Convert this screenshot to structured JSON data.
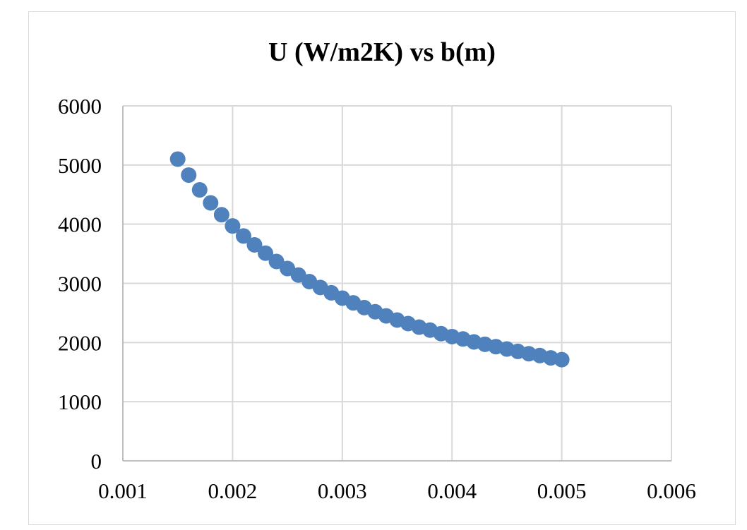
{
  "chart_data": {
    "type": "scatter",
    "title": "U (W/m2K) vs b(m)",
    "xlabel": "",
    "ylabel": "",
    "xlim": [
      0.001,
      0.006
    ],
    "ylim": [
      0,
      6000
    ],
    "x_ticks": [
      "0.001",
      "0.002",
      "0.003",
      "0.004",
      "0.005",
      "0.006"
    ],
    "y_ticks": [
      "0",
      "1000",
      "2000",
      "3000",
      "4000",
      "5000",
      "6000"
    ],
    "grid": true,
    "legend": "none",
    "marker_color": "#4f81bd",
    "series": [
      {
        "x": [
          0.0015,
          0.0016,
          0.0017,
          0.0018,
          0.0019,
          0.002,
          0.0021,
          0.0022,
          0.0023,
          0.0024,
          0.0025,
          0.0026,
          0.0027,
          0.0028,
          0.0029,
          0.003,
          0.0031,
          0.0032,
          0.0033,
          0.0034,
          0.0035,
          0.0036,
          0.0037,
          0.0038,
          0.0039,
          0.004,
          0.0041,
          0.0042,
          0.0043,
          0.0044,
          0.0045,
          0.0046,
          0.0047,
          0.0048,
          0.0049,
          0.005
        ],
        "y": [
          5100,
          4830,
          4580,
          4360,
          4160,
          3970,
          3800,
          3650,
          3510,
          3370,
          3250,
          3140,
          3030,
          2930,
          2840,
          2750,
          2670,
          2590,
          2520,
          2450,
          2380,
          2320,
          2260,
          2210,
          2150,
          2100,
          2060,
          2010,
          1970,
          1930,
          1890,
          1850,
          1810,
          1780,
          1740,
          1710
        ]
      }
    ]
  }
}
